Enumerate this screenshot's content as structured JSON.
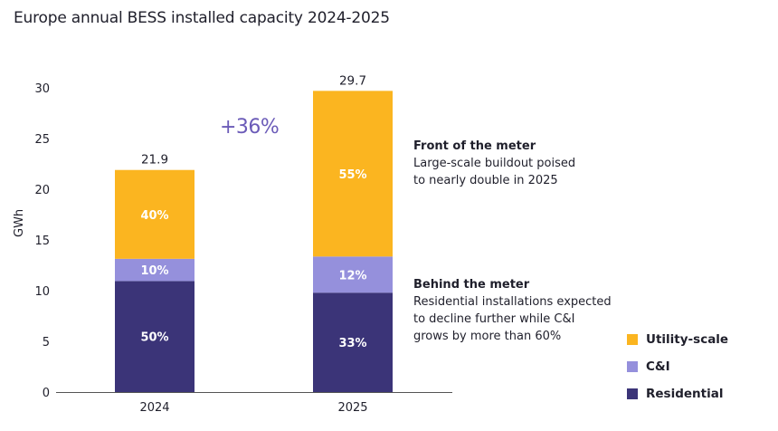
{
  "chart_data": {
    "type": "bar",
    "stacked": true,
    "title": "Europe annual BESS installed capacity 2024-2025",
    "xlabel": "",
    "ylabel": "GWh",
    "ylim": [
      0,
      30
    ],
    "yticks": [
      0,
      5,
      10,
      15,
      20,
      25,
      30
    ],
    "categories": [
      "2024",
      "2025"
    ],
    "totals": [
      21.9,
      29.7
    ],
    "total_labels": [
      "21.9",
      "29.7"
    ],
    "series": [
      {
        "name": "Residential",
        "color": "#3b3478",
        "shares": [
          50,
          33
        ],
        "labels": [
          "50%",
          "33%"
        ],
        "values": [
          10.95,
          9.8
        ]
      },
      {
        "name": "C&I",
        "color": "#9590dc",
        "shares": [
          10,
          12
        ],
        "labels": [
          "10%",
          "12%"
        ],
        "values": [
          2.19,
          3.56
        ]
      },
      {
        "name": "Utility-scale",
        "color": "#fbb520",
        "shares": [
          40,
          55
        ],
        "labels": [
          "40%",
          "55%"
        ],
        "values": [
          8.76,
          16.34
        ]
      }
    ],
    "annotations": {
      "growth": "+36%",
      "front_of_meter": {
        "heading": "Front of the meter",
        "lines": [
          "Large-scale buildout poised",
          "to nearly double in 2025"
        ]
      },
      "behind_meter": {
        "heading": "Behind the meter",
        "lines": [
          "Residential installations expected",
          "to decline further while C&I",
          "grows by more than 60%"
        ]
      }
    },
    "legend": {
      "placement": "bottom-right",
      "entries": [
        "Utility-scale",
        "C&I",
        "Residential"
      ]
    },
    "grid": false
  },
  "colors": {
    "utility": "#fbb520",
    "ci": "#9590dc",
    "residential": "#3b3478",
    "accent": "#6b5bb8",
    "text": "#1f1f2b"
  }
}
